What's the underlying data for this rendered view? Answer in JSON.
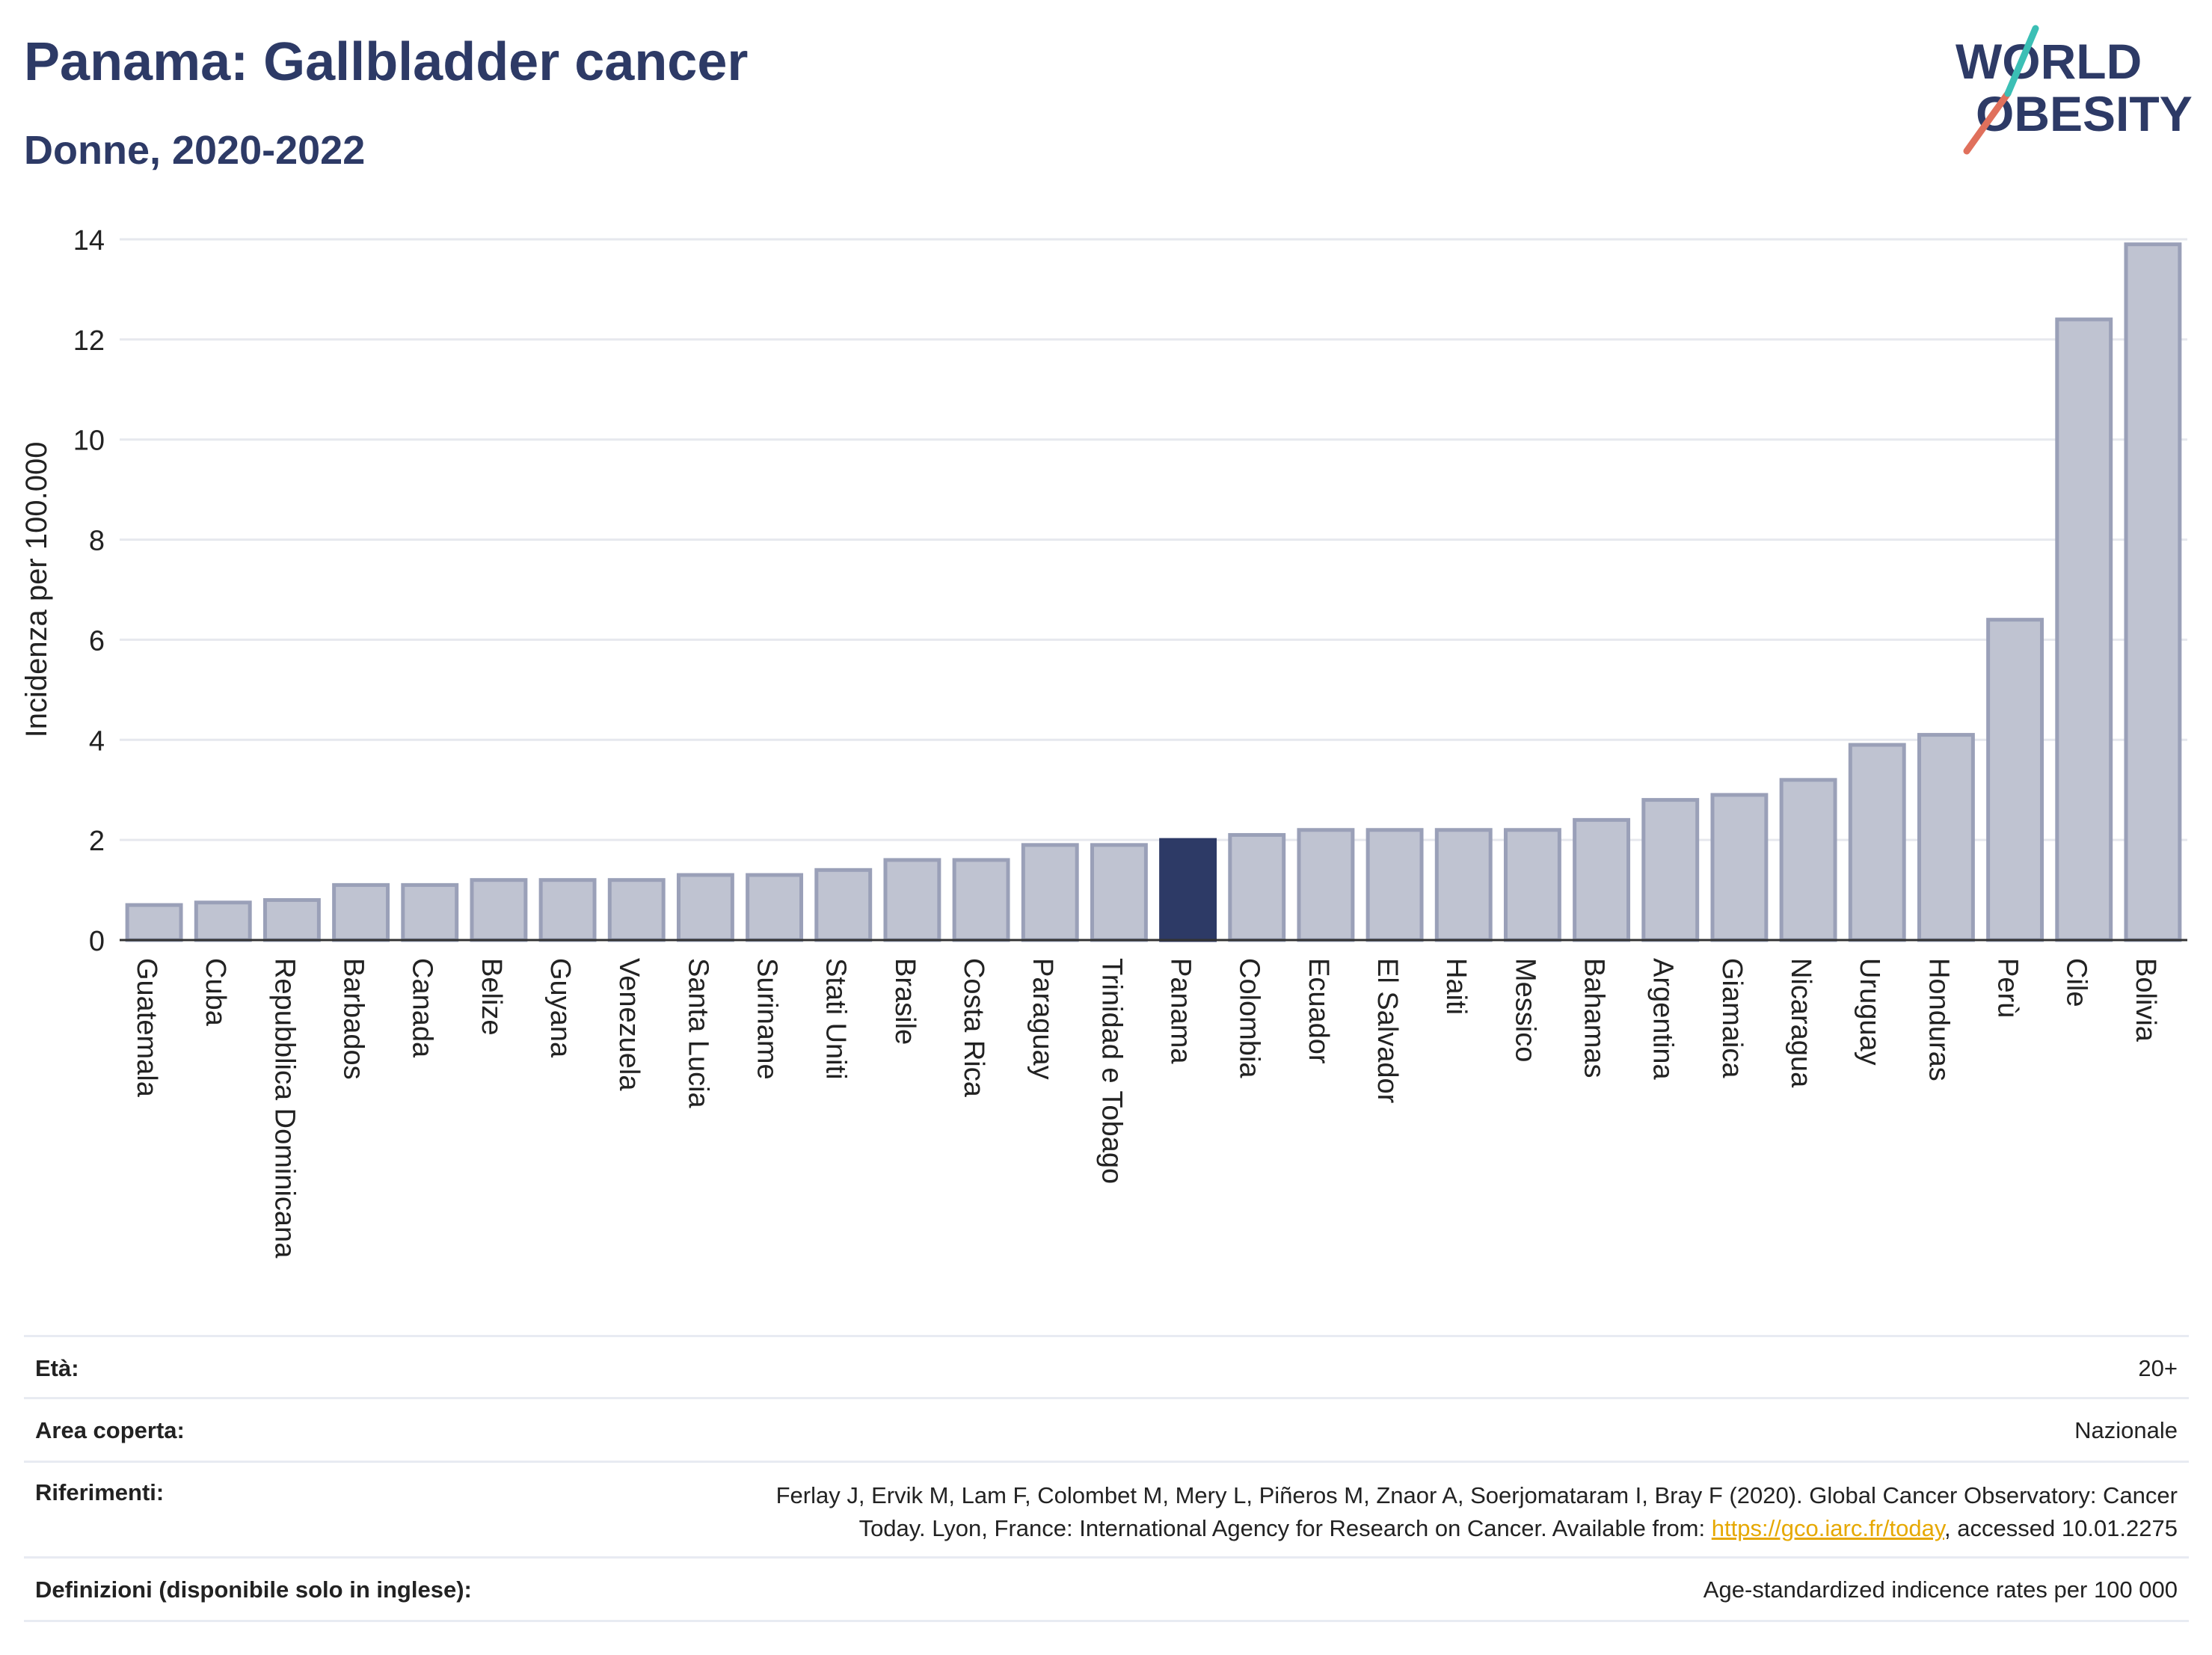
{
  "header": {
    "title": "Panama: Gallbladder cancer",
    "subtitle": "Donne, 2020-2022"
  },
  "logo": {
    "line1": "WORLD",
    "line2": "OBESITY"
  },
  "chart_data": {
    "type": "bar",
    "ylabel": "Incidenza per 100.000",
    "xlabel": "",
    "ylim": [
      0,
      14
    ],
    "yticks": [
      0,
      2,
      4,
      6,
      8,
      10,
      12,
      14
    ],
    "grid": true,
    "highlight": "Panama",
    "categories": [
      "Guatemala",
      "Cuba",
      "Repubblica Dominicana",
      "Barbados",
      "Canada",
      "Belize",
      "Guyana",
      "Venezuela",
      "Santa Lucia",
      "Suriname",
      "Stati Uniti",
      "Brasile",
      "Costa Rica",
      "Paraguay",
      "Trinidad e Tobago",
      "Panama",
      "Colombia",
      "Ecuador",
      "El Salvador",
      "Haiti",
      "Messico",
      "Bahamas",
      "Argentina",
      "Giamaica",
      "Nicaragua",
      "Uruguay",
      "Honduras",
      "Perù",
      "Cile",
      "Bolivia"
    ],
    "values": [
      0.7,
      0.75,
      0.8,
      1.1,
      1.1,
      1.2,
      1.2,
      1.2,
      1.3,
      1.3,
      1.4,
      1.6,
      1.6,
      1.9,
      1.9,
      2.0,
      2.1,
      2.2,
      2.2,
      2.2,
      2.2,
      2.4,
      2.8,
      2.9,
      3.2,
      3.9,
      4.1,
      6.4,
      12.4,
      13.9
    ],
    "colors": {
      "bar": "#bfc3d1",
      "bar_edge": "#9aa0b8",
      "highlight": "#2d3a66",
      "grid": "#e6e8ee"
    }
  },
  "meta": {
    "eta_label": "Età:",
    "eta_value": "20+",
    "area_label": "Area coperta:",
    "area_value": "Nazionale",
    "ref_label": "Riferimenti:",
    "ref_line1": "Ferlay J, Ervik M, Lam F, Colombet M, Mery L, Piñeros M, Znaor A, Soerjomataram I, Bray F (2020). Global Cancer Observatory: Cancer",
    "ref_line2_pre": "Today. Lyon, France: International Agency for Research on Cancer. Available from: ",
    "ref_link": "https://gco.iarc.fr/today",
    "ref_line2_post": ", accessed 10.01.2275",
    "def_label": "Definizioni (disponibile solo in inglese):",
    "def_value": "Age-standardized indicence rates per 100 000"
  }
}
